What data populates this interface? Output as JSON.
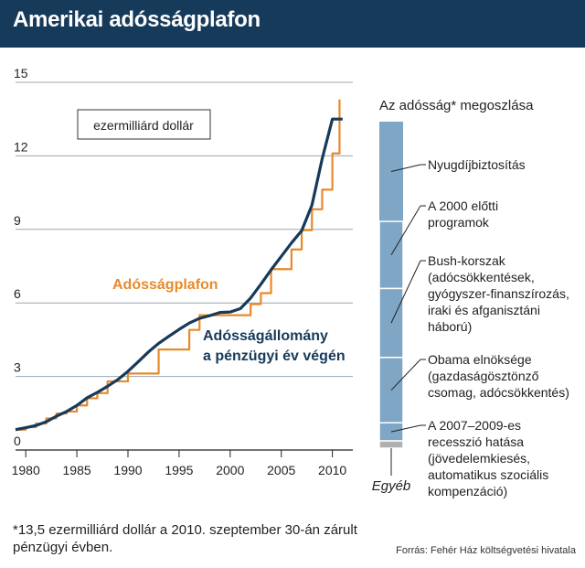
{
  "header": {
    "title": "Amerikai adósságplafon"
  },
  "footnote": "*13,5 ezermilliárd dollár a 2010. szeptember 30-án zárult pénzügyi évben.",
  "source": "Forrás: Fehér Ház költségvetési hivatala",
  "colors": {
    "header": "#163a5a",
    "ceiling": "#e8892b",
    "debt": "#163a5a",
    "bar_blue": "#7fa6c4",
    "bar_other": "#b0b0b0",
    "grid": "#9aa8b4"
  },
  "chart_data": [
    {
      "type": "line",
      "unit_label": "ezermilliárd dollár",
      "xlim": [
        1979,
        2012
      ],
      "ylim": [
        0,
        15
      ],
      "x_ticks": [
        1980,
        1985,
        1990,
        1995,
        2000,
        2005,
        2010
      ],
      "y_ticks": [
        0,
        3,
        6,
        9,
        12,
        15
      ],
      "grid": "horizontal",
      "series": [
        {
          "name": "Adósságplafon",
          "color": "#e8892b",
          "step": true,
          "x": [
            1979,
            1980,
            1981,
            1982,
            1983,
            1984,
            1985,
            1986,
            1987,
            1988,
            1990,
            1993,
            1996,
            1997,
            2002,
            2003,
            2004,
            2006,
            2007,
            2008,
            2009,
            2010,
            2010.7
          ],
          "y": [
            0.83,
            0.93,
            1.08,
            1.29,
            1.49,
            1.57,
            1.82,
            2.11,
            2.32,
            2.8,
            3.12,
            4.1,
            4.9,
            5.5,
            5.95,
            6.4,
            7.38,
            8.18,
            8.97,
            9.82,
            10.62,
            12.1,
            14.3
          ]
        },
        {
          "name": "Adósságállomány a pénzügyi év végén",
          "color": "#163a5a",
          "step": false,
          "x": [
            1979,
            1980,
            1981,
            1982,
            1983,
            1984,
            1985,
            1986,
            1987,
            1988,
            1989,
            1990,
            1991,
            1992,
            1993,
            1994,
            1995,
            1996,
            1997,
            1998,
            1999,
            2000,
            2001,
            2002,
            2003,
            2004,
            2005,
            2006,
            2007,
            2008,
            2009,
            2010,
            2011
          ],
          "y": [
            0.83,
            0.91,
            1.0,
            1.15,
            1.38,
            1.57,
            1.82,
            2.13,
            2.35,
            2.6,
            2.87,
            3.21,
            3.6,
            4.0,
            4.35,
            4.64,
            4.92,
            5.18,
            5.37,
            5.48,
            5.61,
            5.63,
            5.77,
            6.2,
            6.76,
            7.35,
            7.9,
            8.45,
            8.95,
            9.99,
            11.88,
            13.5,
            13.5
          ]
        }
      ],
      "annotations": {
        "ceiling_label": "Adósságplafon",
        "debt_label_line1": "Adósságállomány",
        "debt_label_line2": "a pénzügyi év végén"
      }
    },
    {
      "type": "bar",
      "title": "Az adósság* megoszlása",
      "stacked": true,
      "segments": [
        {
          "label_lines": [
            "Nyugdíjbiztosítás"
          ],
          "fraction": 0.275,
          "color": "#7fa6c4"
        },
        {
          "label_lines": [
            "A 2000 előtti",
            "programok"
          ],
          "fraction": 0.185,
          "color": "#7fa6c4"
        },
        {
          "label_lines": [
            "Bush-korszak",
            "(adócsökkentések,",
            "gyógyszer-finanszírozás,",
            "iraki és afganisztáni",
            "háború)"
          ],
          "fraction": 0.19,
          "color": "#7fa6c4"
        },
        {
          "label_lines": [
            "Obama elnöksége",
            "(gazdaságösztönző",
            "csomag, adócsökkentés)"
          ],
          "fraction": 0.18,
          "color": "#7fa6c4"
        },
        {
          "label_lines": [
            "A 2007–2009-es",
            "recesszió hatása",
            "(jövedelemkiesés,",
            "automatikus szociális",
            "kompenzáció)"
          ],
          "fraction": 0.05,
          "color": "#7fa6c4"
        },
        {
          "label_lines": [
            "Egyéb"
          ],
          "fraction": 0.02,
          "color": "#b0b0b0"
        }
      ]
    }
  ]
}
